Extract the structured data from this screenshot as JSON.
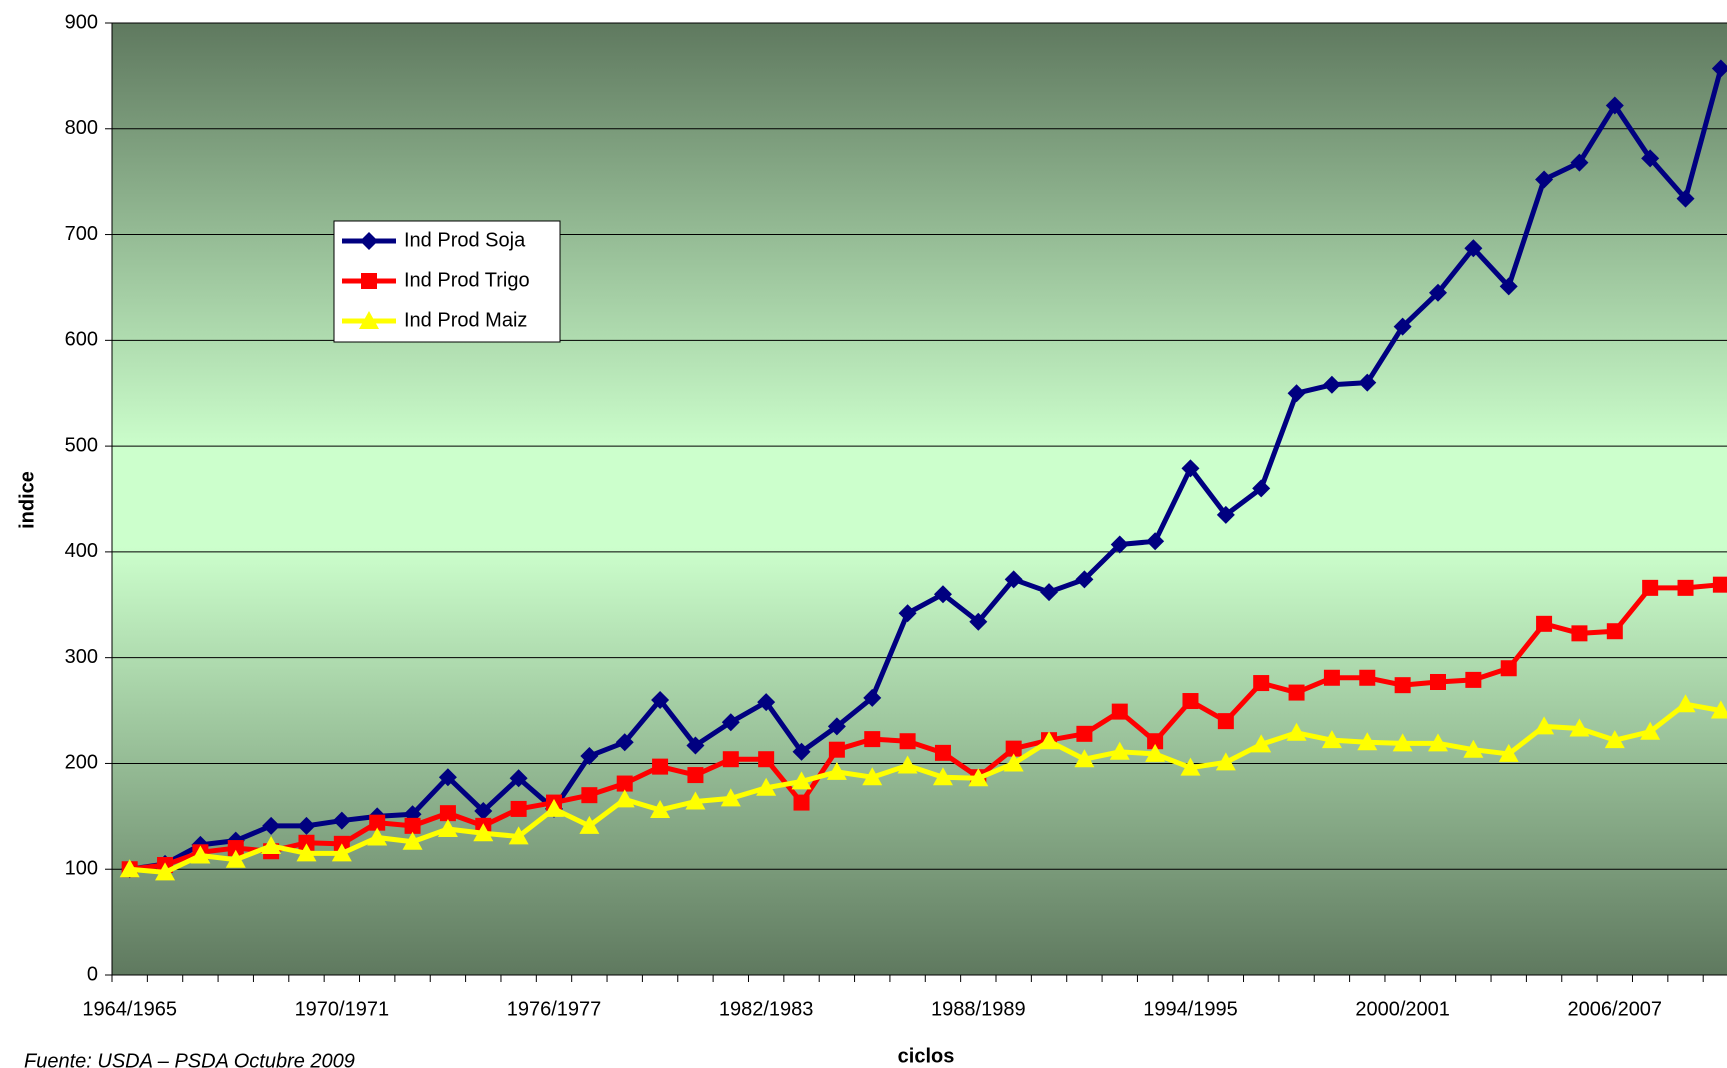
{
  "chart_data": {
    "type": "line",
    "source": "Fuente: USDA – PSDA Octubre 2009",
    "xlabel": "ciclos",
    "ylabel": "indice",
    "categories": [
      "1964/1965",
      null,
      null,
      null,
      null,
      null,
      "1970/1971",
      null,
      null,
      null,
      null,
      null,
      "1976/1977",
      null,
      null,
      null,
      null,
      null,
      "1982/1983",
      null,
      null,
      null,
      null,
      null,
      "1988/1989",
      null,
      null,
      null,
      null,
      null,
      "1994/1995",
      null,
      null,
      null,
      null,
      null,
      "2000/2001",
      null,
      null,
      null,
      null,
      null,
      "2006/2007",
      null,
      null,
      null
    ],
    "series": [
      {
        "name": "Ind Prod Soja",
        "color": "#000080",
        "marker": "diamond",
        "values": [
          100,
          105,
          123,
          127,
          141,
          141,
          146,
          150,
          152,
          187,
          155,
          186,
          157,
          207,
          220,
          260,
          217,
          239,
          258,
          211,
          235,
          262,
          342,
          360,
          334,
          374,
          362,
          374,
          407,
          410,
          479,
          435,
          460,
          550,
          558,
          560,
          613,
          645,
          687,
          651,
          752,
          768,
          822,
          772,
          734,
          857
        ]
      },
      {
        "name": "Ind Prod Trigo",
        "color": "#ff0000",
        "marker": "square",
        "values": [
          100,
          104,
          116,
          120,
          117,
          125,
          124,
          144,
          141,
          153,
          141,
          157,
          163,
          170,
          181,
          197,
          189,
          204,
          204,
          163,
          213,
          223,
          221,
          210,
          187,
          214,
          222,
          228,
          249,
          221,
          259,
          240,
          276,
          267,
          281,
          281,
          274,
          277,
          279,
          290,
          332,
          323,
          325,
          366,
          366,
          369
        ]
      },
      {
        "name": "Ind Prod Maiz",
        "color": "#ffff00",
        "marker": "triangle",
        "values": [
          100,
          97,
          113,
          109,
          122,
          115,
          115,
          130,
          126,
          138,
          134,
          131,
          157,
          141,
          166,
          156,
          164,
          167,
          177,
          183,
          192,
          187,
          198,
          187,
          186,
          200,
          221,
          204,
          211,
          209,
          196,
          201,
          218,
          229,
          222,
          220,
          219,
          219,
          213,
          209,
          235,
          233,
          222,
          230,
          256,
          250
        ]
      }
    ],
    "ylim": [
      0,
      900
    ],
    "yticks": [
      0,
      100,
      200,
      300,
      400,
      500,
      600,
      700,
      800,
      900
    ],
    "grid": true
  }
}
